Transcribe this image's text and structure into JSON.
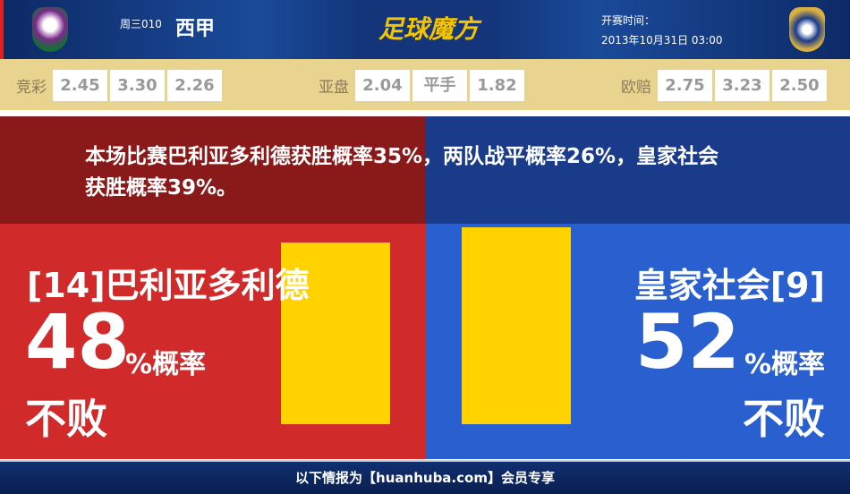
{
  "header": {
    "league_code": "周三010",
    "league": "西甲",
    "logo_text": "足球魔方",
    "kickoff_label": "开赛时间：",
    "kickoff_time": "2013年10月31日 03:00"
  },
  "odds": {
    "jingcai": {
      "label": "竞彩",
      "values": [
        "2.45",
        "3.30",
        "2.26"
      ]
    },
    "yapan": {
      "label": "亚盘",
      "values": [
        "2.04",
        "平手",
        "1.82"
      ]
    },
    "oupei": {
      "label": "欧赔",
      "values": [
        "2.75",
        "3.23",
        "2.50"
      ]
    }
  },
  "summary": "本场比赛巴利亚多利德获胜概率35%，两队战平概率26%，皇家社会获胜概率39%。",
  "home": {
    "name": "[14]巴利亚多利德",
    "percent": "48",
    "unit": "%概率",
    "outcome": "不败",
    "value": 48,
    "color": "#d12a2a"
  },
  "away": {
    "name": "皇家社会[9]",
    "percent": "52",
    "unit": "%概率",
    "outcome": "不败",
    "value": 52,
    "color": "#2a5fcf"
  },
  "bar_color": "#ffd200",
  "footer": "以下情报为【huanhuba.com】会员专享"
}
